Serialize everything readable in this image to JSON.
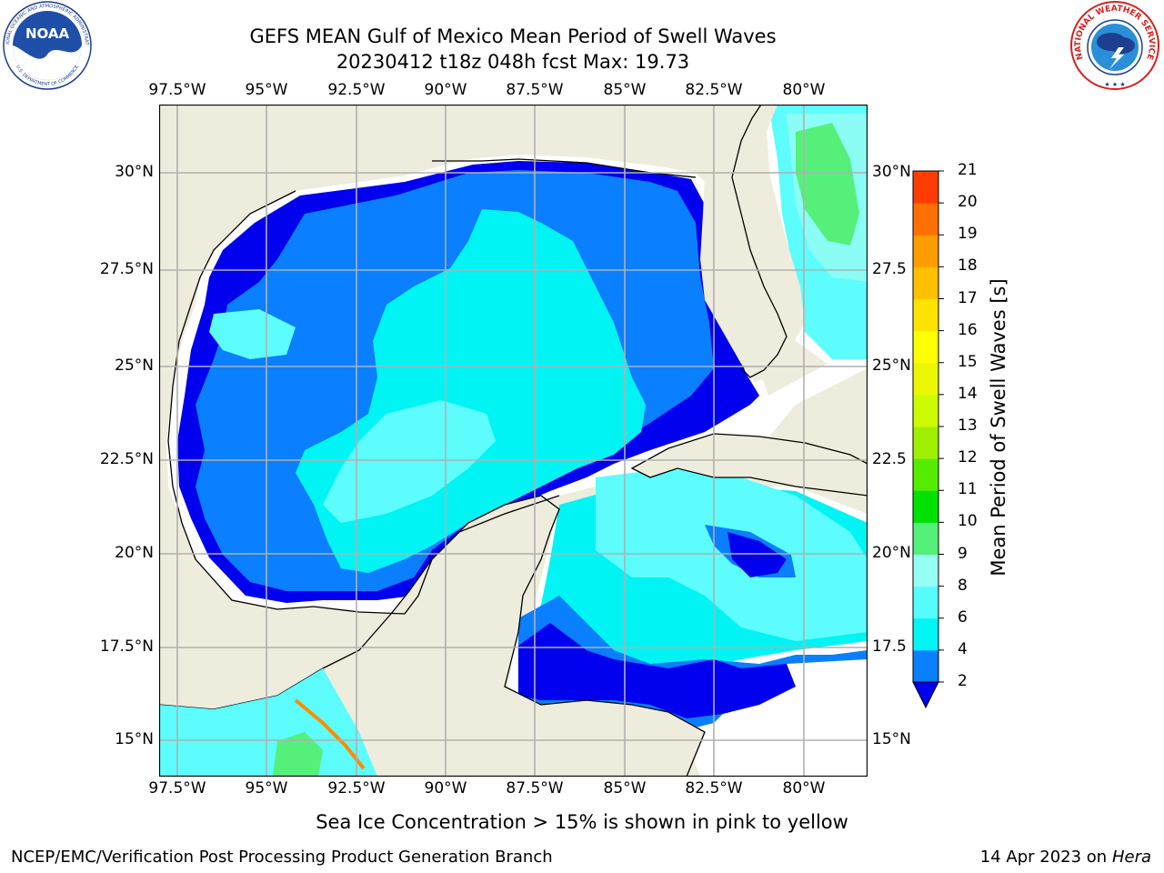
{
  "header": {
    "title_line1": "GEFS MEAN Gulf of Mexico Mean Period of Swell Waves",
    "title_line2": "20230412 t18z 048h fcst   Max: 19.73"
  },
  "logos": {
    "left_icon": "noaa-logo",
    "right_icon": "nws-logo",
    "noaa_text": "NOAA",
    "noaa_ring_text": "NATIONAL OCEANIC AND ATMOSPHERIC ADMINISTRATION",
    "noaa_bottom_text": "U.S. DEPARTMENT OF COMMERCE",
    "nws_ring_text": "NATIONAL WEATHER SERVICE"
  },
  "map": {
    "lon_ticks": [
      "97.5°W",
      "95°W",
      "92.5°W",
      "90°W",
      "87.5°W",
      "85°W",
      "82.5°W",
      "80°W"
    ],
    "lat_ticks_left": [
      "30°N",
      "27.5°N",
      "25°N",
      "22.5°N",
      "20°N",
      "17.5°N",
      "15°N"
    ],
    "lat_ticks_right": [
      "30°N",
      "27.5",
      "25°N",
      "22.5",
      "20°N",
      "17.5",
      "15°N"
    ],
    "colors": {
      "land": "#eeecdc",
      "lowest": "#0000ee",
      "blue": "#0a7fff",
      "cyan": "#00f4f4",
      "light_cyan": "#5dfdfd",
      "pale_cyan": "#8bfdf5",
      "green": "#55f07a"
    }
  },
  "colorbar": {
    "title": "Mean Period of Swell Waves [s]",
    "levels": [
      "2",
      "4",
      "6",
      "8",
      "9",
      "10",
      "11",
      "12",
      "13",
      "14",
      "15",
      "16",
      "17",
      "18",
      "19",
      "20",
      "21"
    ],
    "colors": [
      "#0a7fff",
      "#00f5f5",
      "#55fdfd",
      "#96fff4",
      "#55f07a",
      "#00e100",
      "#55ec00",
      "#9ff000",
      "#cdfa00",
      "#ebf700",
      "#ffff00",
      "#ffe300",
      "#ffc000",
      "#ff9c00",
      "#ff7000",
      "#ff3c00",
      "#ff0000"
    ],
    "under_color": "#0000ee"
  },
  "footer": {
    "note": "Sea Ice Concentration > 15% is shown in pink to yellow",
    "org": "NCEP/EMC/Verification Post Processing Product Generation Branch",
    "date": "14 Apr 2023 on",
    "host": "Hera"
  }
}
